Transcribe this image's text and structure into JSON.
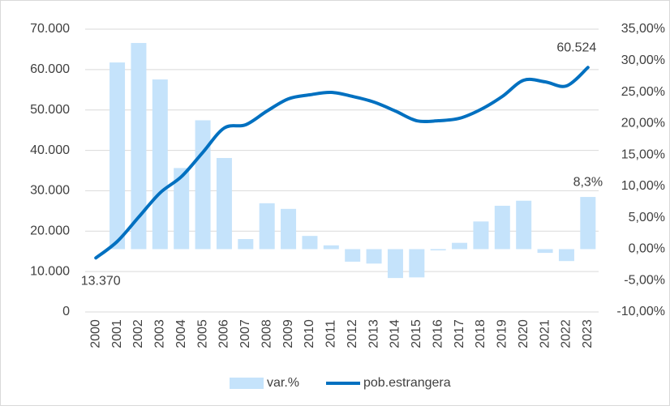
{
  "chart_data": {
    "type": "bar-line",
    "categories": [
      "2000",
      "2001",
      "2002",
      "2003",
      "2004",
      "2005",
      "2006",
      "2007",
      "2008",
      "2009",
      "2010",
      "2011",
      "2012",
      "2013",
      "2014",
      "2015",
      "2016",
      "2017",
      "2018",
      "2019",
      "2020",
      "2021",
      "2022",
      "2023"
    ],
    "series": [
      {
        "name": "var.%",
        "type": "bar",
        "axis": "y2",
        "color": "#c5e3fb",
        "values": [
          null,
          29.7,
          32.8,
          27.0,
          12.9,
          20.5,
          14.5,
          1.6,
          7.3,
          6.4,
          2.1,
          0.6,
          -2.0,
          -2.3,
          -4.6,
          -4.5,
          -0.2,
          1.0,
          4.4,
          6.9,
          7.7,
          -0.6,
          -1.9,
          8.3
        ],
        "value_labels": [
          null,
          null,
          null,
          null,
          null,
          null,
          null,
          null,
          null,
          null,
          null,
          null,
          null,
          null,
          null,
          null,
          null,
          null,
          null,
          null,
          null,
          null,
          null,
          "8,3%"
        ]
      },
      {
        "name": "pob.estrangera",
        "type": "line",
        "axis": "y",
        "color": "#0070c0",
        "values": [
          13370,
          17450,
          23470,
          29480,
          33500,
          39510,
          45530,
          46330,
          49740,
          52750,
          53750,
          54350,
          53350,
          51950,
          49740,
          47330,
          47330,
          47940,
          50140,
          53350,
          57360,
          56960,
          55960,
          60524
        ],
        "value_labels": [
          "13.370",
          null,
          null,
          null,
          null,
          null,
          null,
          null,
          null,
          null,
          null,
          null,
          null,
          null,
          null,
          null,
          null,
          null,
          null,
          null,
          null,
          null,
          null,
          "60.524"
        ]
      }
    ],
    "ylim": [
      0,
      70000
    ],
    "yticks": [
      0,
      {
        "value": 10000,
        "label": "10.000"
      },
      {
        "value": 20000,
        "label": "20.000"
      },
      {
        "value": 30000,
        "label": "30.000"
      },
      {
        "value": 40000,
        "label": "40.000"
      },
      {
        "value": 50000,
        "label": "50.000"
      },
      {
        "value": 60000,
        "label": "60.000"
      },
      {
        "value": 70000,
        "label": "70.000"
      }
    ],
    "y2lim": [
      -10,
      35
    ],
    "y2ticks": [
      {
        "value": -10,
        "label": "-10,00%"
      },
      {
        "value": -5,
        "label": "-5,00%"
      },
      {
        "value": 0,
        "label": "0,00%"
      },
      {
        "value": 5,
        "label": "5,00%"
      },
      {
        "value": 10,
        "label": "10,00%"
      },
      {
        "value": 15,
        "label": "15,00%"
      },
      {
        "value": 20,
        "label": "20,00%"
      },
      {
        "value": 25,
        "label": "25,00%"
      },
      {
        "value": 30,
        "label": "30,00%"
      },
      {
        "value": 35,
        "label": "35,00%"
      }
    ],
    "legend": "bottom"
  }
}
